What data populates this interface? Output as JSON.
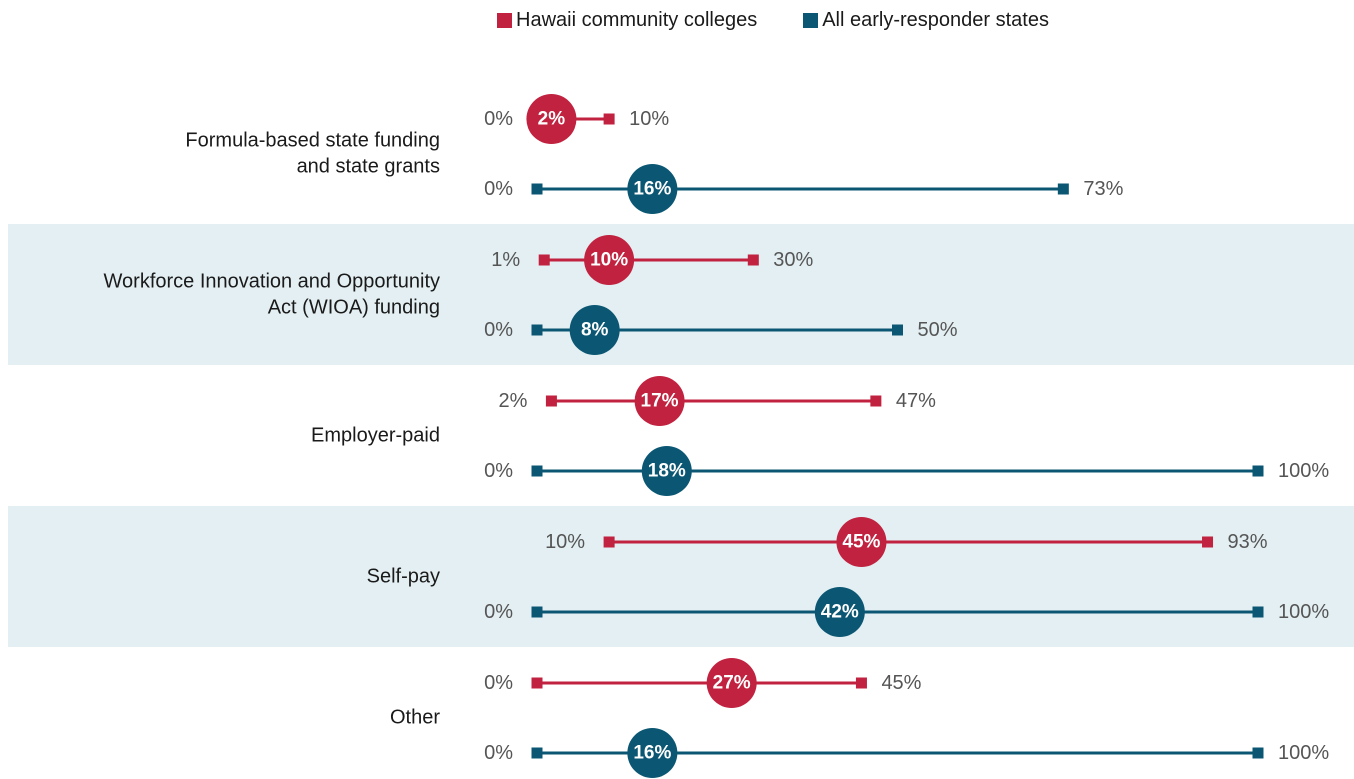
{
  "colors": {
    "hawaii": "#C0223F",
    "all_states": "#0B5773",
    "band": "#E3EFF2",
    "range_label": "#555555",
    "category_label": "#1a1a1a"
  },
  "legend": [
    {
      "name": "Hawaii community colleges",
      "color_key": "hawaii"
    },
    {
      "name": "All early-responder states",
      "color_key": "all_states"
    }
  ],
  "chart_data": {
    "type": "dot-range",
    "xlim": [
      0,
      100
    ],
    "series": [
      {
        "name": "Hawaii community colleges"
      },
      {
        "name": "All early-responder states"
      }
    ],
    "categories": [
      {
        "label": [
          "Formula-based state funding",
          "and state grants"
        ],
        "shaded": false,
        "rows": [
          {
            "series": "Hawaii community colleges",
            "min": 0,
            "median": 2,
            "max": 10,
            "min_label": "0%",
            "median_label": "2%",
            "max_label": "10%"
          },
          {
            "series": "All early-responder states",
            "min": 0,
            "median": 16,
            "max": 73,
            "min_label": "0%",
            "median_label": "16%",
            "max_label": "73%"
          }
        ]
      },
      {
        "label": [
          "Workforce Innovation and Opportunity",
          "Act (WIOA) funding"
        ],
        "shaded": true,
        "rows": [
          {
            "series": "Hawaii community colleges",
            "min": 1,
            "median": 10,
            "max": 30,
            "min_label": "1%",
            "median_label": "10%",
            "max_label": "30%"
          },
          {
            "series": "All early-responder states",
            "min": 0,
            "median": 8,
            "max": 50,
            "min_label": "0%",
            "median_label": "8%",
            "max_label": "50%"
          }
        ]
      },
      {
        "label": [
          "Employer-paid"
        ],
        "shaded": false,
        "rows": [
          {
            "series": "Hawaii community colleges",
            "min": 2,
            "median": 17,
            "max": 47,
            "min_label": "2%",
            "median_label": "17%",
            "max_label": "47%"
          },
          {
            "series": "All early-responder states",
            "min": 0,
            "median": 18,
            "max": 100,
            "min_label": "0%",
            "median_label": "18%",
            "max_label": "100%"
          }
        ]
      },
      {
        "label": [
          "Self-pay"
        ],
        "shaded": true,
        "rows": [
          {
            "series": "Hawaii community colleges",
            "min": 10,
            "median": 45,
            "max": 93,
            "min_label": "10%",
            "median_label": "45%",
            "max_label": "93%"
          },
          {
            "series": "All early-responder states",
            "min": 0,
            "median": 42,
            "max": 100,
            "min_label": "0%",
            "median_label": "42%",
            "max_label": "100%"
          }
        ]
      },
      {
        "label": [
          "Other"
        ],
        "shaded": false,
        "rows": [
          {
            "series": "Hawaii community colleges",
            "min": 0,
            "median": 27,
            "max": 45,
            "min_label": "0%",
            "median_label": "27%",
            "max_label": "45%"
          },
          {
            "series": "All early-responder states",
            "min": 0,
            "median": 16,
            "max": 100,
            "min_label": "0%",
            "median_label": "16%",
            "max_label": "100%"
          }
        ]
      }
    ]
  }
}
